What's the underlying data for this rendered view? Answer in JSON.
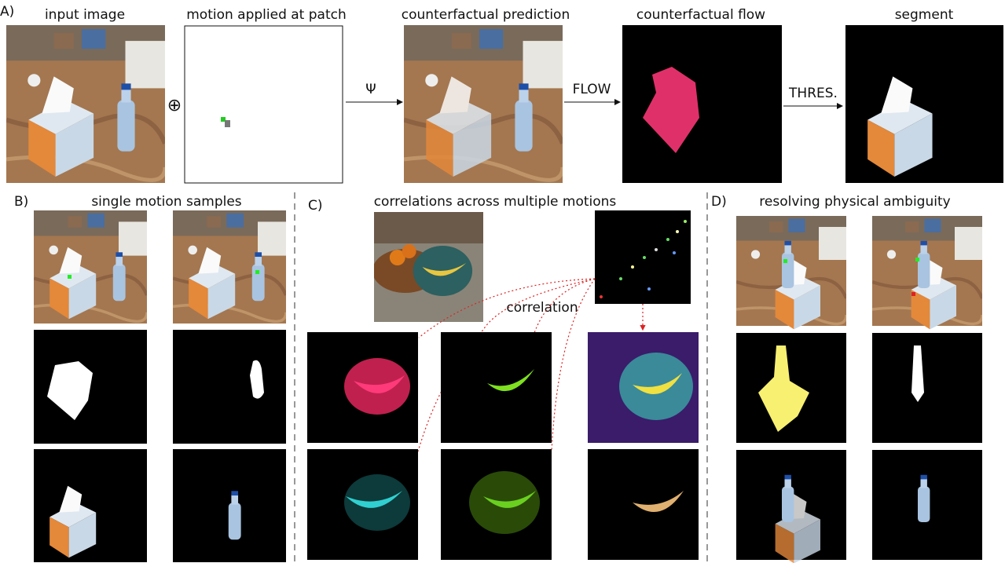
{
  "panel_a": {
    "label": "A)",
    "captions": [
      "input image",
      "motion applied at patch",
      "counterfactual prediction",
      "counterfactual flow",
      "segment"
    ],
    "operators": {
      "plus": "⊕",
      "psi": "Ψ",
      "flow": "FLOW",
      "threshold": "THRES."
    }
  },
  "panel_b": {
    "label": "B)",
    "title": "single motion samples"
  },
  "panel_c": {
    "label": "C)",
    "title": "correlations across multiple motions",
    "annotation": "correlation"
  },
  "panel_d": {
    "label": "D)",
    "title": "resolving physical ambiguity"
  }
}
